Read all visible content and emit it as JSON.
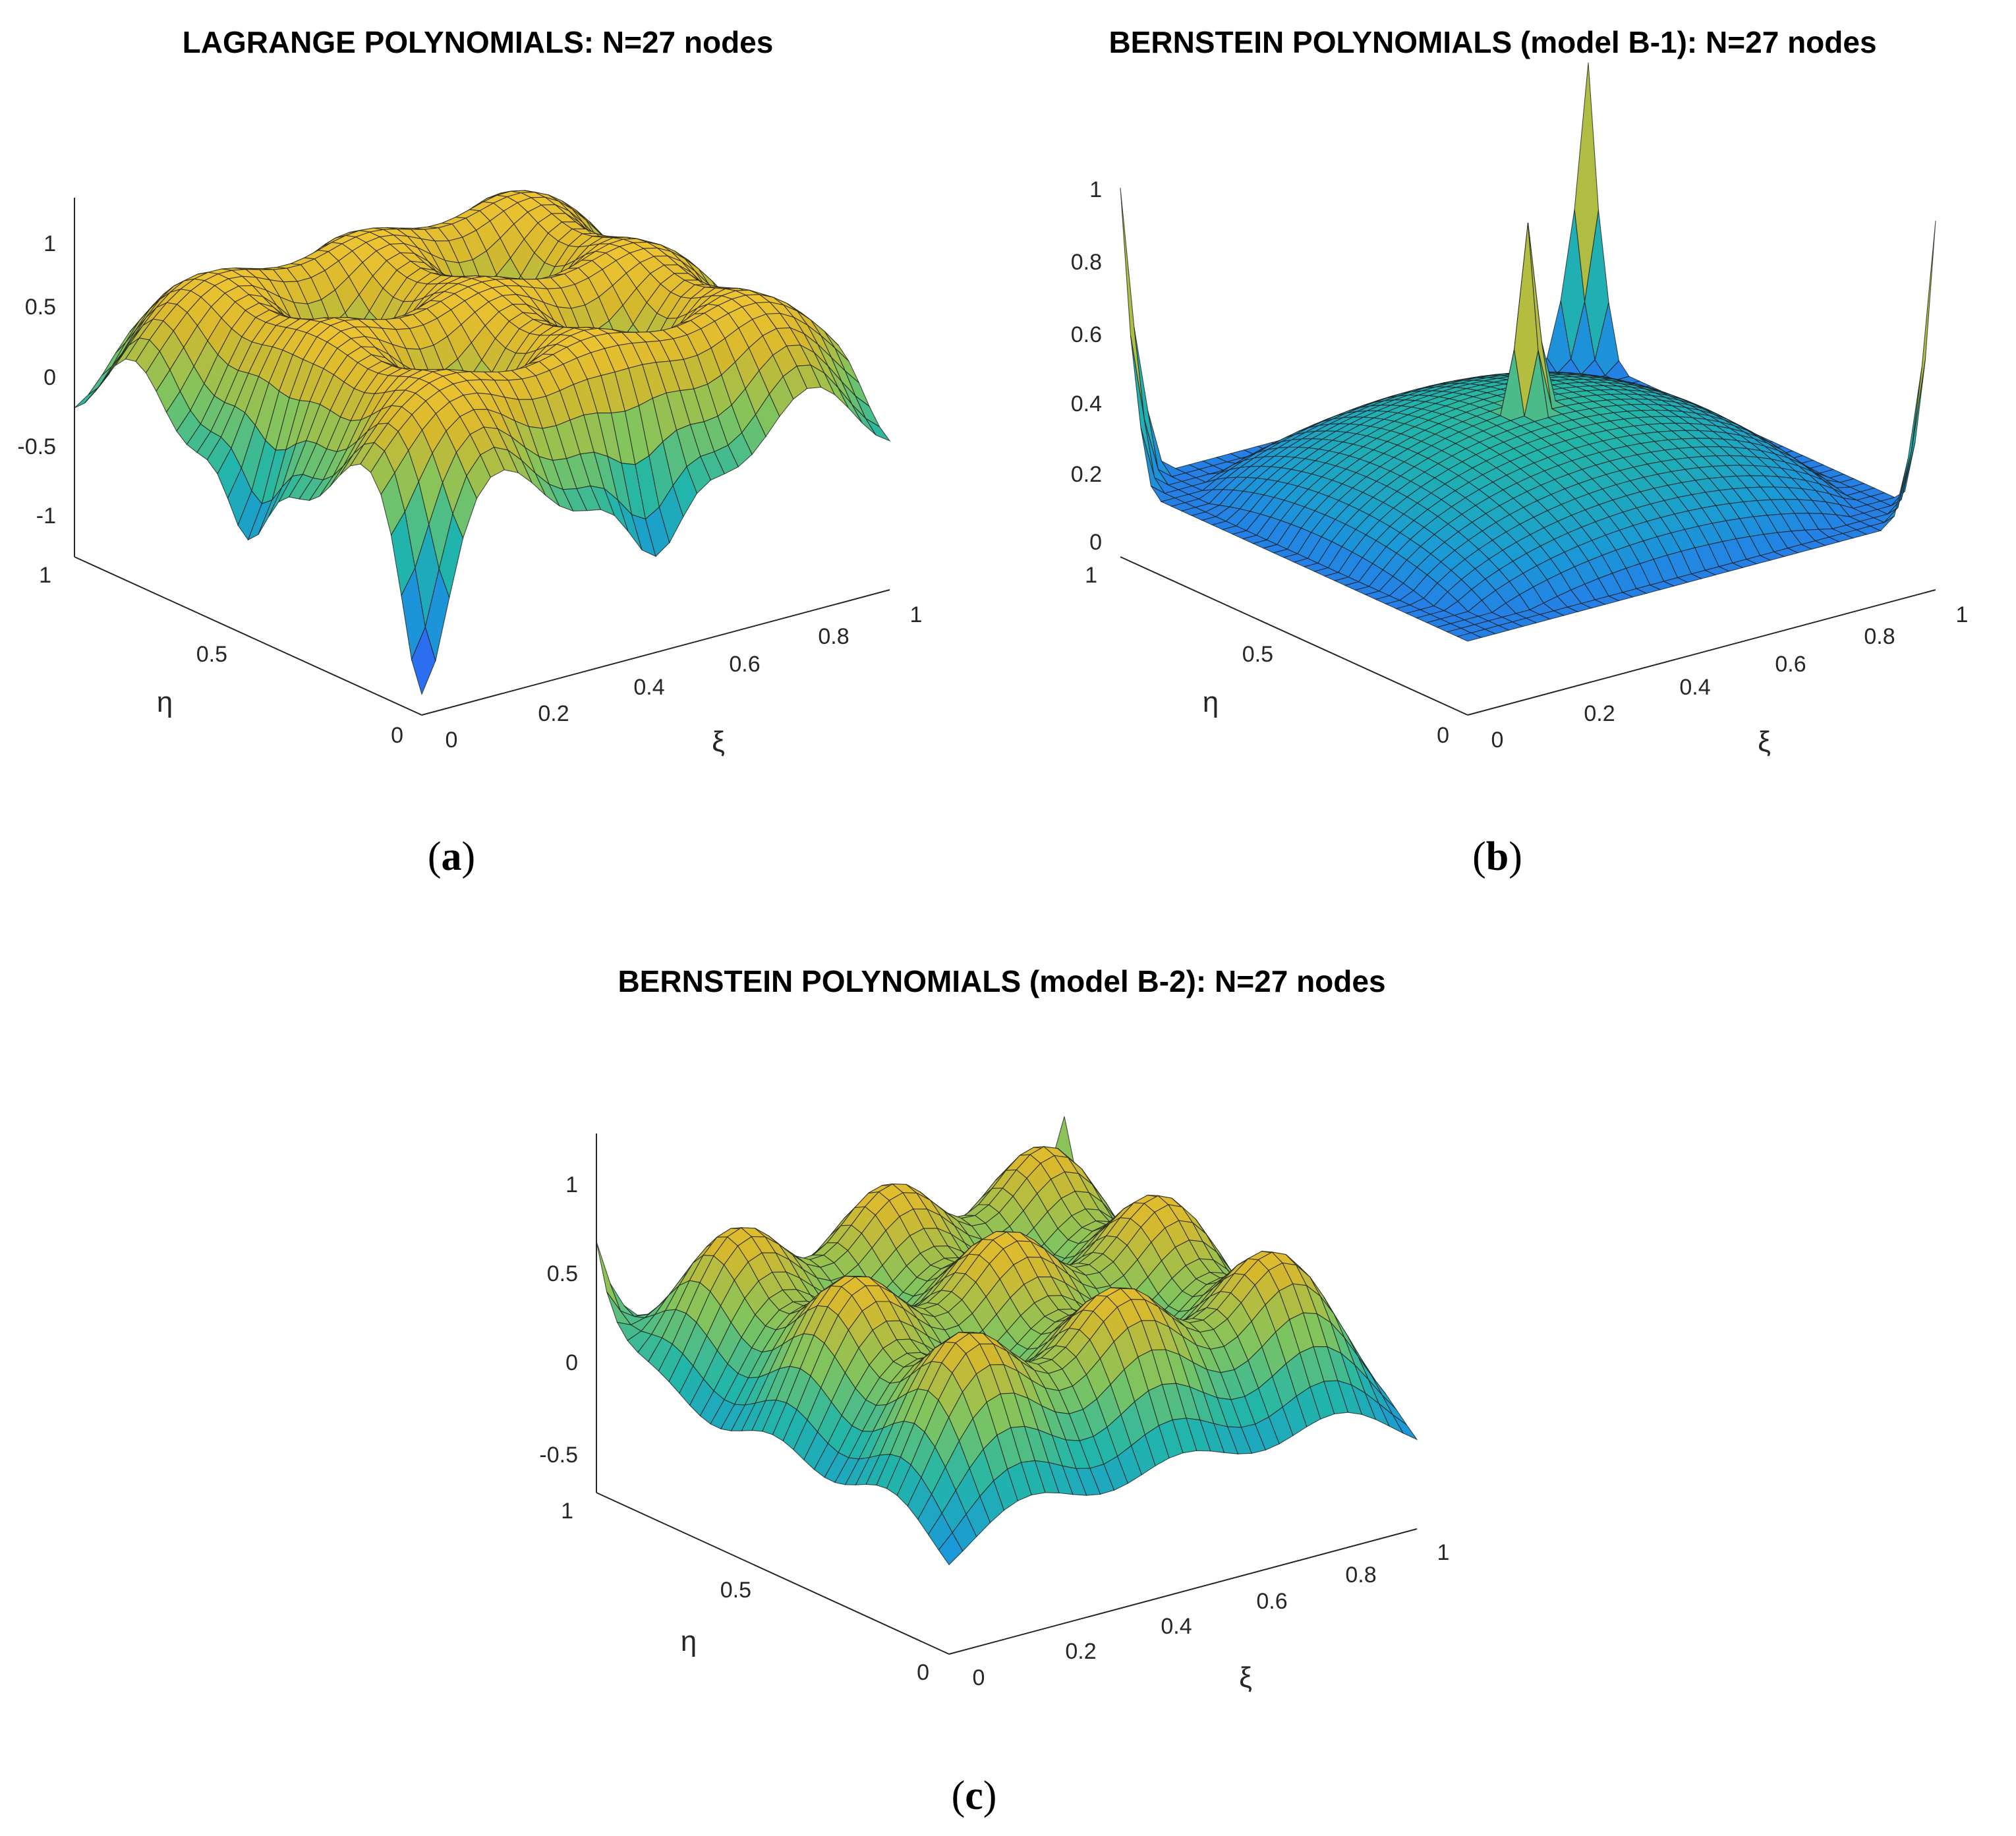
{
  "figure": {
    "colormap": [
      "#3e26a8",
      "#2c6ff1",
      "#1a9ad6",
      "#22b6a9",
      "#81c45e",
      "#d6b82d",
      "#f9c932",
      "#f9fb15"
    ],
    "edge_color": "#1a1a1a"
  },
  "chart_data": [
    {
      "id": "a",
      "type": "surface",
      "caption_open": "(",
      "caption_letter": "a",
      "caption_close": ")",
      "title": "LAGRANGE POLYNOMIALS: N=27 nodes",
      "xlabel": "ξ",
      "ylabel": "η",
      "xlim": [
        0,
        1
      ],
      "ylim": [
        0,
        1
      ],
      "zlim": [
        -1.2,
        1.3
      ],
      "xticks": [
        "0",
        "0.2",
        "0.4",
        "0.6",
        "0.8",
        "1"
      ],
      "yticks": [
        "0",
        "0.5",
        "1"
      ],
      "zticks": [
        "-1",
        "-0.5",
        "0",
        "0.5",
        "1"
      ],
      "zmin": -1.2,
      "zmax": 1.3
    },
    {
      "id": "b",
      "type": "surface",
      "caption_open": "(",
      "caption_letter": "b",
      "caption_close": ")",
      "title": "BERNSTEIN POLYNOMIALS (model B-1): N=27 nodes",
      "xlabel": "ξ",
      "ylabel": "η",
      "xlim": [
        0,
        1
      ],
      "ylim": [
        0,
        1
      ],
      "zlim": [
        0,
        1
      ],
      "xticks": [
        "0",
        "0.2",
        "0.4",
        "0.6",
        "0.8",
        "1"
      ],
      "yticks": [
        "0",
        "0.5",
        "1"
      ],
      "zticks": [
        "0",
        "0.2",
        "0.4",
        "0.6",
        "0.8",
        "1"
      ],
      "zmin": 0,
      "zmax": 1
    },
    {
      "id": "c",
      "type": "surface",
      "caption_open": "(",
      "caption_letter": "c",
      "caption_close": ")",
      "title": "BERNSTEIN POLYNOMIALS (model B-2): N=27 nodes",
      "xlabel": "ξ",
      "ylabel": "η",
      "xlim": [
        0,
        1
      ],
      "ylim": [
        0,
        1
      ],
      "zlim": [
        -0.7,
        1.3
      ],
      "xticks": [
        "0",
        "0.2",
        "0.4",
        "0.6",
        "0.8",
        "1"
      ],
      "yticks": [
        "0",
        "0.5",
        "1"
      ],
      "zticks": [
        "-0.5",
        "0",
        "0.5",
        "1"
      ],
      "zmin": -0.7,
      "zmax": 1.3
    }
  ]
}
